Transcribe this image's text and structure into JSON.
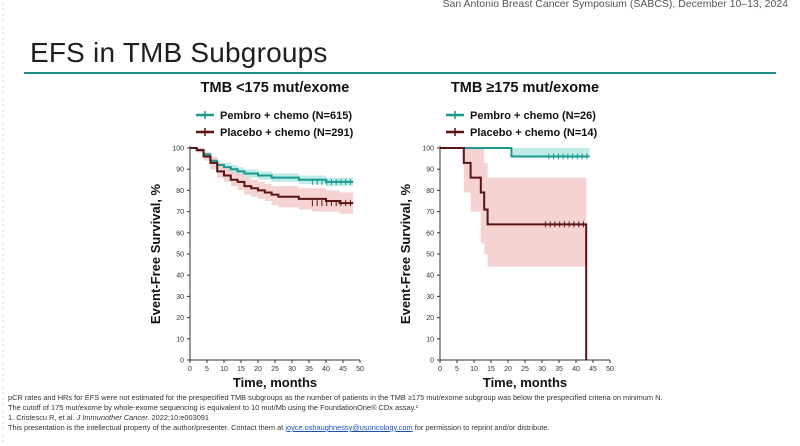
{
  "header": {
    "conference": "San Antonio Breast Cancer Symposium (SABCS), December 10–13, 2024"
  },
  "slide_title": "EFS in TMB Subgroups",
  "colors": {
    "pembro": "#1a9a8e",
    "pembro_band": "#a9e4e0",
    "placebo": "#5a1212",
    "placebo_band": "#f2c4c4",
    "rule": "#1f8a86"
  },
  "chart_data": [
    {
      "type": "line",
      "title": "TMB <175 mut/exome",
      "xlabel": "Time, months",
      "ylabel": "Event-Free Survival, %",
      "xlim": [
        0,
        50
      ],
      "ylim": [
        0,
        100
      ],
      "xticks": [
        "0",
        "5",
        "10",
        "15",
        "20",
        "25",
        "30",
        "35",
        "40",
        "45",
        "50"
      ],
      "yticks": [
        "0",
        "10",
        "20",
        "30",
        "40",
        "50",
        "60",
        "70",
        "80",
        "90",
        "100"
      ],
      "legend_position": "top-left",
      "series": [
        {
          "name": "Pembro + chemo (N=615)",
          "x": [
            0,
            2,
            4,
            6,
            8,
            10,
            12,
            14,
            16,
            18,
            20,
            22,
            24,
            26,
            28,
            30,
            32,
            34,
            36,
            38,
            40,
            42,
            44,
            46,
            48
          ],
          "y": [
            100,
            99,
            97,
            94,
            92,
            91,
            90,
            89,
            88,
            88,
            87,
            87,
            86,
            86,
            86,
            86,
            85,
            85,
            85,
            85,
            84,
            84,
            84,
            84,
            84
          ],
          "lower": [
            100,
            98,
            96,
            93,
            90,
            89,
            88,
            87,
            86,
            86,
            85,
            85,
            84,
            84,
            84,
            84,
            83,
            83,
            83,
            83,
            82,
            82,
            82,
            82,
            82
          ],
          "upper": [
            100,
            100,
            98,
            95,
            93,
            93,
            92,
            91,
            90,
            90,
            89,
            89,
            88,
            88,
            88,
            88,
            87,
            87,
            87,
            87,
            86,
            86,
            86,
            86,
            86
          ]
        },
        {
          "name": "Placebo + chemo (N=291)",
          "x": [
            0,
            2,
            4,
            6,
            8,
            10,
            12,
            14,
            16,
            18,
            20,
            22,
            24,
            26,
            28,
            30,
            32,
            34,
            36,
            38,
            40,
            42,
            44,
            46,
            48
          ],
          "y": [
            100,
            99,
            96,
            93,
            89,
            87,
            85,
            84,
            82,
            81,
            80,
            79,
            78,
            77,
            77,
            77,
            76,
            76,
            76,
            76,
            75,
            75,
            74,
            74,
            74
          ],
          "lower": [
            100,
            98,
            94,
            90,
            86,
            84,
            82,
            80,
            78,
            77,
            76,
            75,
            73,
            72,
            72,
            72,
            71,
            71,
            70,
            70,
            70,
            70,
            69,
            69,
            69
          ],
          "upper": [
            100,
            100,
            98,
            96,
            93,
            91,
            89,
            88,
            86,
            85,
            84,
            83,
            82,
            82,
            82,
            82,
            81,
            81,
            81,
            81,
            80,
            80,
            79,
            79,
            79
          ]
        }
      ]
    },
    {
      "type": "line",
      "title": "TMB ≥175 mut/exome",
      "xlabel": "Time, months",
      "ylabel": "Event-Free Survival, %",
      "xlim": [
        0,
        50
      ],
      "ylim": [
        0,
        100
      ],
      "xticks": [
        "0",
        "5",
        "10",
        "15",
        "20",
        "25",
        "30",
        "35",
        "40",
        "45",
        "50"
      ],
      "yticks": [
        "0",
        "10",
        "20",
        "30",
        "40",
        "50",
        "60",
        "70",
        "80",
        "90",
        "100"
      ],
      "legend_position": "top-left",
      "series": [
        {
          "name": "Pembro + chemo (N=26)",
          "x": [
            0,
            21,
            21,
            44
          ],
          "y": [
            100,
            100,
            96,
            96
          ],
          "lower": [
            100,
            100,
            96,
            96
          ],
          "upper": [
            100,
            100,
            100,
            100
          ]
        },
        {
          "name": "Placebo + chemo (N=14)",
          "x": [
            0,
            7,
            7,
            9,
            9,
            12,
            12,
            13,
            13,
            14,
            14,
            43,
            43
          ],
          "y": [
            100,
            100,
            93,
            93,
            86,
            86,
            79,
            79,
            71,
            71,
            64,
            64,
            0
          ],
          "lower": [
            100,
            100,
            79,
            79,
            70,
            70,
            55,
            55,
            50,
            50,
            44,
            44,
            44
          ],
          "upper": [
            100,
            100,
            100,
            100,
            100,
            100,
            100,
            100,
            93,
            93,
            86,
            86,
            86
          ]
        }
      ]
    }
  ],
  "footer": {
    "line1": "pCR rates and HRs for EFS were not estimated for the prespecified TMB subgroups as the number of patients in the TMB ≥175 mut/exome subgroup was below the prespecified criteria on minimum N.",
    "line2": "The cutoff of 175 mut/exome by whole-exome sequencing is equivalent to 10 mut/Mb using the FoundationOne® CDx assay.¹",
    "line3_a": "1. Cristescu R, et al. ",
    "line3_journal": "J Immunother Cancer.",
    "line3_b": " 2022;10:e003091",
    "line4_a": "This presentation is the intellectual property of the author/presenter. Contact them at ",
    "line4_email": "joyce.oshaughnessy@usoncology.com",
    "line4_b": " for permission to reprint and/or distribute."
  }
}
